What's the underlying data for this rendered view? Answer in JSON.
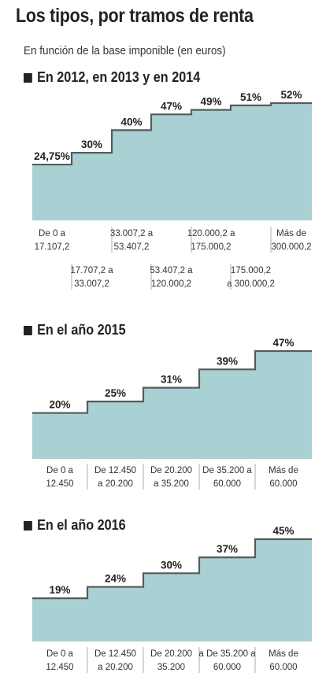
{
  "header": {
    "title": "Los tipos, por tramos de renta",
    "subtitle": "En función de la base imponible (en euros)"
  },
  "colors": {
    "fill": "#a9d0d3",
    "stroke": "#5a5a5a",
    "text": "#222222"
  },
  "chart_data": [
    {
      "type": "step-area",
      "title": "En 2012, en 2013 y en 2014",
      "categories": [
        [
          "De 0 a",
          "17.107,2"
        ],
        [
          "17.707,2 a",
          "33.007,2"
        ],
        [
          "33.007,2 a",
          "53.407,2"
        ],
        [
          "53.407,2 a",
          "120.000,2"
        ],
        [
          "120.000,2 a",
          "175.000,2"
        ],
        [
          "175.000,2",
          "a 300.000,2"
        ],
        [
          "Más de",
          "300.000,2"
        ]
      ],
      "value_labels": [
        "24,75%",
        "30%",
        "40%",
        "47%",
        "49%",
        "51%",
        "52%"
      ],
      "values": [
        24.75,
        30,
        40,
        47,
        49,
        51,
        52
      ]
    },
    {
      "type": "step-area",
      "title": "En el año 2015",
      "categories": [
        [
          "De 0 a",
          "12.450"
        ],
        [
          "De 12.450",
          "a 20.200"
        ],
        [
          "De 20.200",
          "a 35.200"
        ],
        [
          "De 35.200 a",
          "60.000"
        ],
        [
          "Más de",
          "60.000"
        ]
      ],
      "value_labels": [
        "20%",
        "25%",
        "31%",
        "39%",
        "47%"
      ],
      "values": [
        20,
        25,
        31,
        39,
        47
      ]
    },
    {
      "type": "step-area",
      "title": "En el año 2016",
      "categories": [
        [
          "De 0 a",
          "12.450"
        ],
        [
          "De 12.450",
          "a 20.200"
        ],
        [
          "De 20.200",
          "35.200"
        ],
        [
          "a De 35.200 a",
          "60.000"
        ],
        [
          "Más de",
          "60.000"
        ]
      ],
      "value_labels": [
        "19%",
        "24%",
        "30%",
        "37%",
        "45%"
      ],
      "values": [
        19,
        24,
        30,
        37,
        45
      ]
    }
  ]
}
